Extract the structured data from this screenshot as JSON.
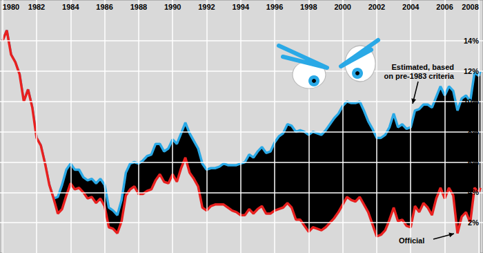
{
  "chart_data": {
    "type": "line",
    "x": [
      1980,
      1980.25,
      1980.5,
      1980.75,
      1981,
      1981.25,
      1981.5,
      1981.75,
      1982,
      1982.25,
      1982.5,
      1982.75,
      1983,
      1983.25,
      1983.5,
      1983.75,
      1984,
      1984.25,
      1984.5,
      1984.75,
      1985,
      1985.25,
      1985.5,
      1985.75,
      1986,
      1986.25,
      1986.5,
      1986.75,
      1987,
      1987.25,
      1987.5,
      1987.75,
      1988,
      1988.25,
      1988.5,
      1988.75,
      1989,
      1989.25,
      1989.5,
      1989.75,
      1990,
      1990.25,
      1990.5,
      1990.75,
      1991,
      1991.25,
      1991.5,
      1991.75,
      1992,
      1992.25,
      1992.5,
      1992.75,
      1993,
      1993.25,
      1993.5,
      1993.75,
      1994,
      1994.25,
      1994.5,
      1994.75,
      1995,
      1995.25,
      1995.5,
      1995.75,
      1996,
      1996.25,
      1996.5,
      1996.75,
      1997,
      1997.25,
      1997.5,
      1997.75,
      1998,
      1998.25,
      1998.5,
      1998.75,
      1999,
      1999.25,
      1999.5,
      1999.75,
      2000,
      2000.25,
      2000.5,
      2000.75,
      2001,
      2001.25,
      2001.5,
      2001.75,
      2002,
      2002.25,
      2002.5,
      2002.75,
      2003,
      2003.25,
      2003.5,
      2003.75,
      2004,
      2004.25,
      2004.5,
      2004.75,
      2005,
      2005.25,
      2005.5,
      2005.75,
      2006,
      2006.25,
      2006.5,
      2006.75,
      2007,
      2007.25,
      2007.5,
      2007.75,
      2008,
      2008.1
    ],
    "series": [
      {
        "name": "Estimated, based\non pre-1983 criteria",
        "color": "#2aa9e6",
        "values": [
          14.0,
          14.7,
          13.1,
          12.6,
          11.8,
          10.0,
          10.8,
          9.6,
          7.6,
          7.1,
          5.9,
          4.5,
          3.6,
          3.7,
          4.5,
          5.5,
          5.9,
          5.5,
          5.5,
          5.0,
          4.8,
          4.9,
          4.6,
          4.9,
          4.5,
          3.0,
          2.8,
          2.5,
          3.5,
          5.3,
          5.9,
          6.0,
          5.9,
          6.1,
          6.4,
          6.5,
          7.2,
          7.2,
          6.7,
          6.9,
          7.5,
          7.2,
          7.9,
          8.6,
          7.9,
          7.4,
          6.9,
          5.9,
          5.5,
          5.6,
          5.6,
          5.7,
          5.9,
          5.8,
          5.8,
          5.8,
          5.9,
          6.0,
          6.5,
          6.3,
          6.7,
          7.0,
          6.6,
          6.7,
          7.3,
          7.7,
          7.9,
          8.5,
          8.4,
          8.0,
          8.1,
          8.0,
          7.8,
          8.0,
          7.9,
          7.8,
          8.1,
          8.5,
          8.9,
          9.2,
          9.7,
          10.0,
          9.9,
          9.9,
          10.0,
          9.4,
          8.7,
          8.2,
          7.6,
          7.6,
          7.8,
          8.3,
          9.2,
          8.3,
          8.5,
          8.2,
          8.3,
          9.4,
          9.5,
          9.8,
          9.8,
          9.6,
          10.3,
          11.0,
          10.4,
          11.0,
          10.7,
          9.4,
          10.2,
          10.4,
          10.0,
          11.9,
          11.7,
          12.0
        ]
      },
      {
        "name": "Official",
        "color": "#e8201f",
        "values": [
          14.0,
          14.7,
          13.1,
          12.6,
          11.8,
          10.0,
          10.8,
          9.6,
          7.6,
          7.1,
          5.9,
          4.5,
          3.6,
          2.6,
          2.9,
          3.8,
          4.6,
          4.2,
          4.3,
          4.0,
          3.6,
          3.7,
          3.3,
          3.6,
          3.1,
          1.7,
          1.6,
          1.3,
          2.1,
          3.8,
          4.2,
          4.4,
          3.9,
          3.9,
          4.1,
          4.2,
          4.8,
          5.2,
          4.7,
          4.6,
          5.2,
          4.7,
          5.6,
          6.3,
          5.3,
          4.9,
          4.4,
          3.0,
          2.8,
          3.1,
          3.2,
          3.2,
          3.2,
          3.0,
          2.8,
          2.7,
          2.5,
          2.5,
          2.9,
          2.6,
          2.9,
          3.1,
          2.6,
          2.6,
          2.8,
          2.9,
          3.0,
          3.3,
          3.0,
          2.2,
          2.2,
          1.8,
          1.4,
          1.7,
          1.6,
          1.5,
          1.7,
          2.0,
          2.3,
          2.7,
          3.2,
          3.7,
          3.5,
          3.4,
          3.7,
          3.2,
          2.7,
          1.9,
          1.1,
          1.2,
          1.5,
          2.2,
          3.0,
          2.1,
          2.2,
          1.8,
          1.7,
          3.1,
          2.7,
          3.3,
          3.0,
          2.5,
          3.6,
          4.3,
          3.6,
          4.3,
          3.8,
          1.3,
          2.4,
          2.7,
          2.0,
          4.3,
          4.0,
          4.3
        ]
      }
    ],
    "xlim": [
      1979.85,
      2008.25
    ],
    "xticks": [
      1980,
      1982,
      1984,
      1986,
      1988,
      1990,
      1992,
      1994,
      1996,
      1998,
      2000,
      2002,
      2004,
      2006,
      2008
    ],
    "ylim": [
      0,
      16.7
    ],
    "yticks": [
      {
        "value": 2,
        "label": "2%"
      },
      {
        "value": 4,
        "label": "4%"
      },
      {
        "value": 6,
        "label": "6%"
      },
      {
        "value": 8,
        "label": "8%"
      },
      {
        "value": 10,
        "label": "10%"
      },
      {
        "value": 12,
        "label": "12%"
      },
      {
        "value": 14,
        "label": "14%"
      }
    ],
    "grid": true
  }
}
